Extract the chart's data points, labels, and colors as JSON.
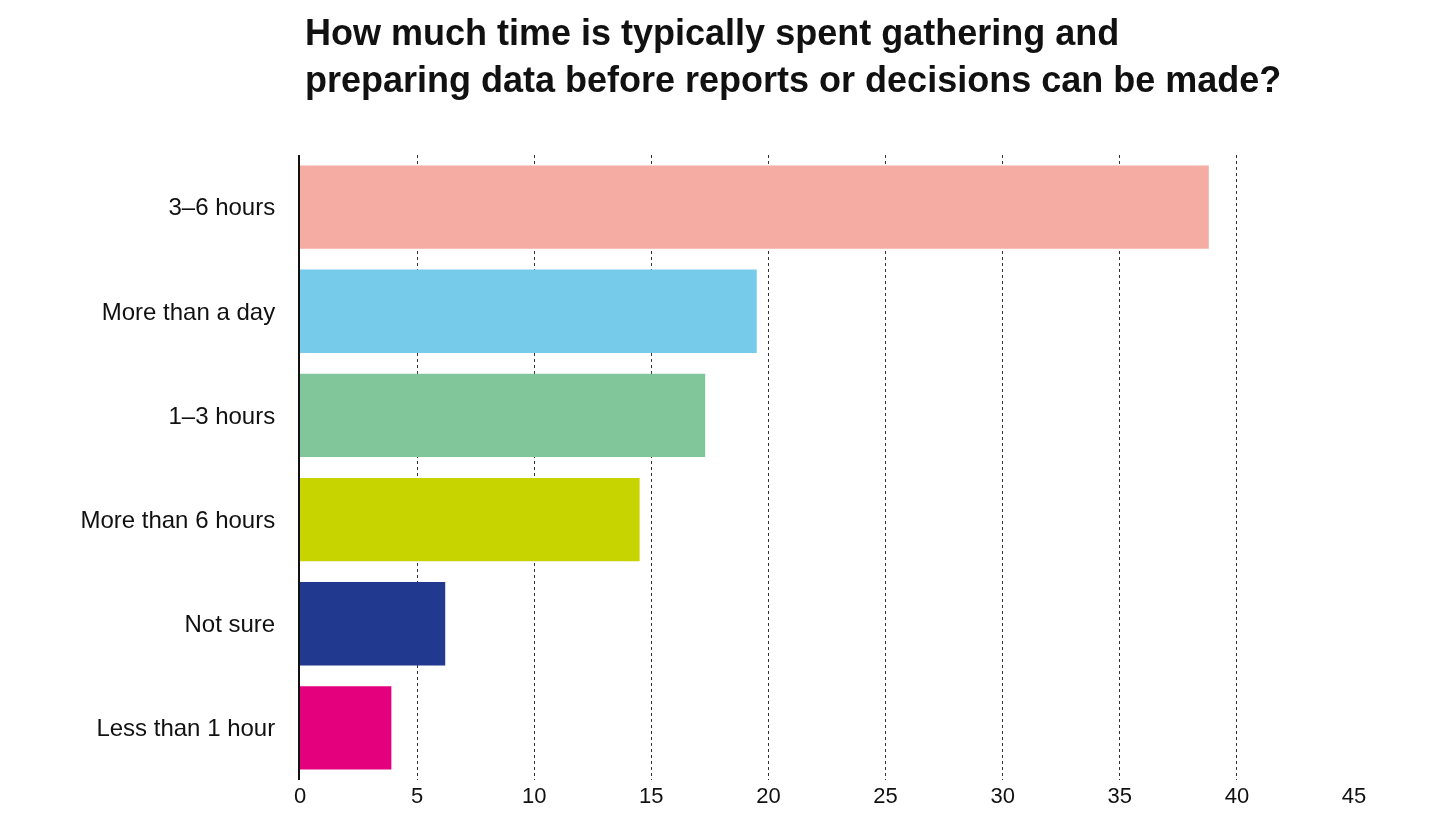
{
  "chart_data": {
    "type": "bar",
    "orientation": "horizontal",
    "title": "How much time is typically spent gathering and\npreparing data before reports or decisions can be made?",
    "categories": [
      "3–6 hours",
      "More than a day",
      "1–3 hours",
      "More than 6 hours",
      "Not sure",
      "Less than 1 hour"
    ],
    "values": [
      38.8,
      19.5,
      17.3,
      14.5,
      6.2,
      3.9
    ],
    "colors": [
      "#f4aca3",
      "#76cbea",
      "#80c69a",
      "#c8d400",
      "#21398e",
      "#e4007c"
    ],
    "xlim": [
      0,
      45
    ],
    "xticks": [
      0,
      5,
      10,
      15,
      20,
      25,
      30,
      35,
      40,
      45
    ],
    "grid": "x",
    "legend": false
  }
}
